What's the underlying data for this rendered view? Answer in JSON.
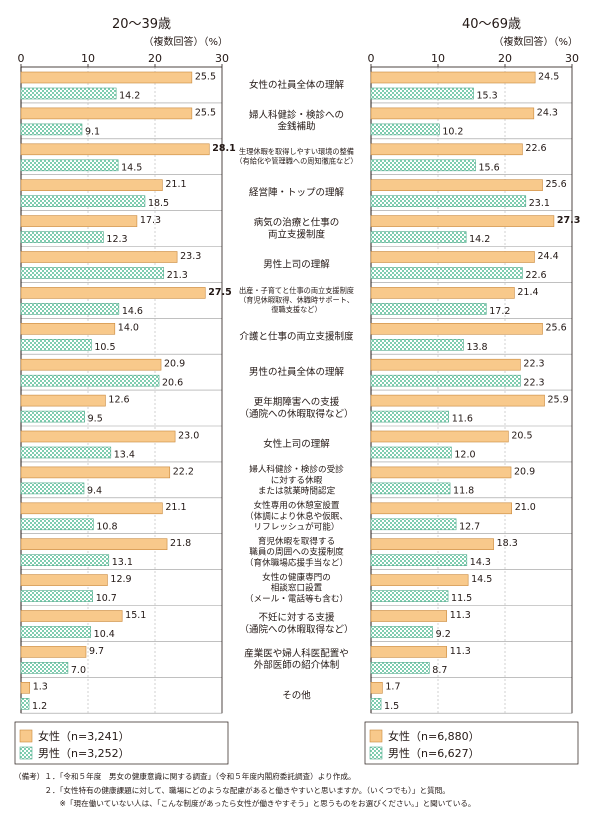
{
  "chart_data": {
    "type": "bar",
    "orientation": "horizontal",
    "grid": true,
    "categories": [
      "女性の社員全体の理解",
      "婦人科健診・検診への\n金銭補助",
      "生理休暇を取得しやすい環境の整備\n（有給化や管理職への周知徹底など）",
      "経営陣・トップの理解",
      "病気の治療と仕事の\n両立支援制度",
      "男性上司の理解",
      "出産・子育てと仕事の両立支援制度\n（育児休暇取得、休職時サポート、\n復職支援など）",
      "介護と仕事の両立支援制度",
      "男性の社員全体の理解",
      "更年期障害への支援\n（通院への休暇取得など）",
      "女性上司の理解",
      "婦人科健診・検診の受診\nに対する休暇\nまたは就業時間認定",
      "女性専用の休憩室設置\n（体調により休息や仮眠、\nリフレッシュが可能）",
      "育児休暇を取得する\n職員の周囲への支援制度\n（育休職場応援手当など）",
      "女性の健康専門の\n相談窓口設置\n（メール・電話等も含む）",
      "不妊に対する支援\n（通院への休暇取得など）",
      "産業医や婦人科医配置や\n外部医師の紹介体制",
      "その他"
    ],
    "panels": [
      {
        "title": "20～39歳",
        "note": "（複数回答）（%）",
        "xlim": [
          0,
          30
        ],
        "ticks": [
          "0",
          "10",
          "20",
          "30"
        ],
        "series": [
          {
            "name": "女性",
            "n_label": "（n=3,241）",
            "color": "#f8c98b",
            "values": [
              25.5,
              25.5,
              28.1,
              21.1,
              17.3,
              23.3,
              27.5,
              14.0,
              20.9,
              12.6,
              23.0,
              22.2,
              21.1,
              21.8,
              12.9,
              15.1,
              9.7,
              1.3
            ],
            "labels": [
              "25.5",
              "25.5",
              "28.1",
              "21.1",
              "17.3",
              "23.3",
              "27.5",
              "14.0",
              "20.9",
              "12.6",
              "23.0",
              "22.2",
              "21.1",
              "21.8",
              "12.9",
              "15.1",
              "9.7",
              "1.3"
            ]
          },
          {
            "name": "男性",
            "n_label": "（n=3,252）",
            "color": "#7fcdb0",
            "values": [
              14.2,
              9.1,
              14.5,
              18.5,
              12.3,
              21.3,
              14.6,
              10.5,
              20.6,
              9.5,
              13.4,
              9.4,
              10.8,
              13.1,
              10.7,
              10.4,
              7.0,
              1.2
            ],
            "labels": [
              "14.2",
              "9.1",
              "14.5",
              "18.5",
              "12.3",
              "21.3",
              "14.6",
              "10.5",
              "20.6",
              "9.5",
              "13.4",
              "9.4",
              "10.8",
              "13.1",
              "10.7",
              "10.4",
              "7.0",
              "1.2"
            ]
          }
        ]
      },
      {
        "title": "40～69歳",
        "note": "（複数回答）（%）",
        "xlim": [
          0,
          30
        ],
        "ticks": [
          "0",
          "10",
          "20",
          "30"
        ],
        "series": [
          {
            "name": "女性",
            "n_label": "（n=6,880）",
            "color": "#f8c98b",
            "values": [
              24.5,
              24.3,
              22.6,
              25.6,
              27.3,
              24.4,
              21.4,
              25.6,
              22.3,
              25.9,
              20.5,
              20.9,
              21.0,
              18.3,
              14.5,
              11.3,
              11.3,
              1.7
            ],
            "labels": [
              "24.5",
              "24.3",
              "22.6",
              "25.6",
              "27.3",
              "24.4",
              "21.4",
              "25.6",
              "22.3",
              "25.9",
              "20.5",
              "20.9",
              "21.0",
              "18.3",
              "14.5",
              "11.3",
              "11.3",
              "1.7"
            ]
          },
          {
            "name": "男性",
            "n_label": "（n=6,627）",
            "color": "#7fcdb0",
            "values": [
              15.3,
              10.2,
              15.6,
              23.1,
              14.2,
              22.6,
              17.2,
              13.8,
              22.3,
              11.6,
              12.0,
              11.8,
              12.7,
              14.3,
              11.5,
              9.2,
              8.7,
              1.5
            ],
            "labels": [
              "15.3",
              "10.2",
              "15.6",
              "23.1",
              "14.2",
              "22.6",
              "17.2",
              "13.8",
              "22.3",
              "11.6",
              "12.0",
              "11.8",
              "12.7",
              "14.3",
              "11.5",
              "9.2",
              "8.7",
              "1.5"
            ]
          }
        ]
      }
    ],
    "bold_labels": {
      "left_female": [
        2,
        6
      ],
      "right_female": [
        4
      ]
    }
  },
  "footnotes": {
    "lines": [
      "（備考）１．「令和５年度　男女の健康意識に関する調査」（令和５年度内閣府委託調査）より作成。",
      "　　　　２．「女性特有の健康課題に対して、職場にどのような配慮があると働きやすいと思いますか。（いくつでも）」と質問。",
      "　　　　　　※「現在働いていない人は、「こんな制度があったら女性が働きやすそう」と思うものをお選びください。」と聞いている。"
    ]
  }
}
